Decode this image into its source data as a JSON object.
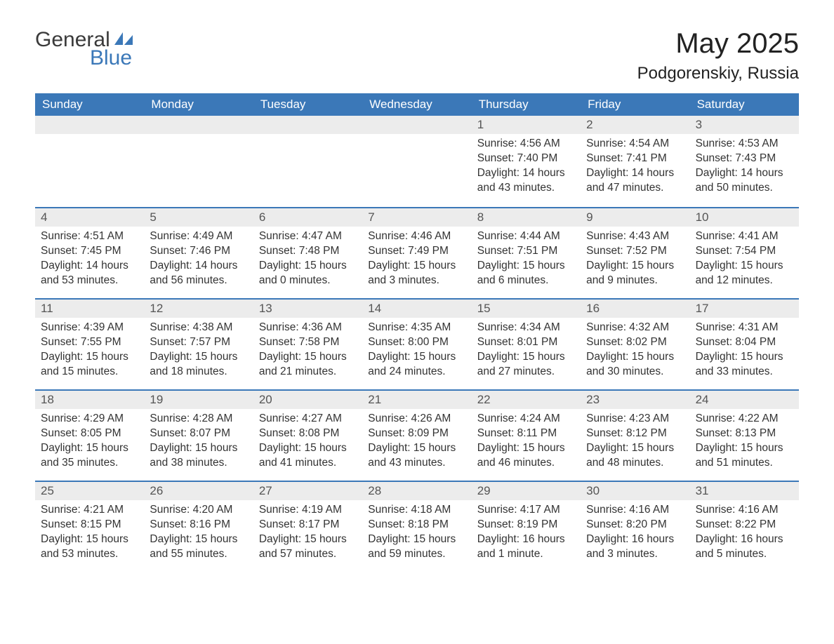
{
  "brand": {
    "part1": "General",
    "part2": "Blue"
  },
  "title": "May 2025",
  "location": "Podgorenskiy, Russia",
  "colors": {
    "header_bg": "#3b78b8",
    "header_text": "#ffffff",
    "daynum_bg": "#ececec",
    "daynum_text": "#555555",
    "body_text": "#333333",
    "rule": "#3b78b8",
    "page_bg": "#ffffff",
    "logo_gray": "#3a3a3a",
    "logo_blue": "#3b78b8"
  },
  "dayNames": [
    "Sunday",
    "Monday",
    "Tuesday",
    "Wednesday",
    "Thursday",
    "Friday",
    "Saturday"
  ],
  "weeks": [
    [
      null,
      null,
      null,
      null,
      {
        "n": "1",
        "sr": "4:56 AM",
        "ss": "7:40 PM",
        "dl": "14 hours and 43 minutes."
      },
      {
        "n": "2",
        "sr": "4:54 AM",
        "ss": "7:41 PM",
        "dl": "14 hours and 47 minutes."
      },
      {
        "n": "3",
        "sr": "4:53 AM",
        "ss": "7:43 PM",
        "dl": "14 hours and 50 minutes."
      }
    ],
    [
      {
        "n": "4",
        "sr": "4:51 AM",
        "ss": "7:45 PM",
        "dl": "14 hours and 53 minutes."
      },
      {
        "n": "5",
        "sr": "4:49 AM",
        "ss": "7:46 PM",
        "dl": "14 hours and 56 minutes."
      },
      {
        "n": "6",
        "sr": "4:47 AM",
        "ss": "7:48 PM",
        "dl": "15 hours and 0 minutes."
      },
      {
        "n": "7",
        "sr": "4:46 AM",
        "ss": "7:49 PM",
        "dl": "15 hours and 3 minutes."
      },
      {
        "n": "8",
        "sr": "4:44 AM",
        "ss": "7:51 PM",
        "dl": "15 hours and 6 minutes."
      },
      {
        "n": "9",
        "sr": "4:43 AM",
        "ss": "7:52 PM",
        "dl": "15 hours and 9 minutes."
      },
      {
        "n": "10",
        "sr": "4:41 AM",
        "ss": "7:54 PM",
        "dl": "15 hours and 12 minutes."
      }
    ],
    [
      {
        "n": "11",
        "sr": "4:39 AM",
        "ss": "7:55 PM",
        "dl": "15 hours and 15 minutes."
      },
      {
        "n": "12",
        "sr": "4:38 AM",
        "ss": "7:57 PM",
        "dl": "15 hours and 18 minutes."
      },
      {
        "n": "13",
        "sr": "4:36 AM",
        "ss": "7:58 PM",
        "dl": "15 hours and 21 minutes."
      },
      {
        "n": "14",
        "sr": "4:35 AM",
        "ss": "8:00 PM",
        "dl": "15 hours and 24 minutes."
      },
      {
        "n": "15",
        "sr": "4:34 AM",
        "ss": "8:01 PM",
        "dl": "15 hours and 27 minutes."
      },
      {
        "n": "16",
        "sr": "4:32 AM",
        "ss": "8:02 PM",
        "dl": "15 hours and 30 minutes."
      },
      {
        "n": "17",
        "sr": "4:31 AM",
        "ss": "8:04 PM",
        "dl": "15 hours and 33 minutes."
      }
    ],
    [
      {
        "n": "18",
        "sr": "4:29 AM",
        "ss": "8:05 PM",
        "dl": "15 hours and 35 minutes."
      },
      {
        "n": "19",
        "sr": "4:28 AM",
        "ss": "8:07 PM",
        "dl": "15 hours and 38 minutes."
      },
      {
        "n": "20",
        "sr": "4:27 AM",
        "ss": "8:08 PM",
        "dl": "15 hours and 41 minutes."
      },
      {
        "n": "21",
        "sr": "4:26 AM",
        "ss": "8:09 PM",
        "dl": "15 hours and 43 minutes."
      },
      {
        "n": "22",
        "sr": "4:24 AM",
        "ss": "8:11 PM",
        "dl": "15 hours and 46 minutes."
      },
      {
        "n": "23",
        "sr": "4:23 AM",
        "ss": "8:12 PM",
        "dl": "15 hours and 48 minutes."
      },
      {
        "n": "24",
        "sr": "4:22 AM",
        "ss": "8:13 PM",
        "dl": "15 hours and 51 minutes."
      }
    ],
    [
      {
        "n": "25",
        "sr": "4:21 AM",
        "ss": "8:15 PM",
        "dl": "15 hours and 53 minutes."
      },
      {
        "n": "26",
        "sr": "4:20 AM",
        "ss": "8:16 PM",
        "dl": "15 hours and 55 minutes."
      },
      {
        "n": "27",
        "sr": "4:19 AM",
        "ss": "8:17 PM",
        "dl": "15 hours and 57 minutes."
      },
      {
        "n": "28",
        "sr": "4:18 AM",
        "ss": "8:18 PM",
        "dl": "15 hours and 59 minutes."
      },
      {
        "n": "29",
        "sr": "4:17 AM",
        "ss": "8:19 PM",
        "dl": "16 hours and 1 minute."
      },
      {
        "n": "30",
        "sr": "4:16 AM",
        "ss": "8:20 PM",
        "dl": "16 hours and 3 minutes."
      },
      {
        "n": "31",
        "sr": "4:16 AM",
        "ss": "8:22 PM",
        "dl": "16 hours and 5 minutes."
      }
    ]
  ],
  "labels": {
    "sunrise": "Sunrise: ",
    "sunset": "Sunset: ",
    "daylight": "Daylight: "
  }
}
